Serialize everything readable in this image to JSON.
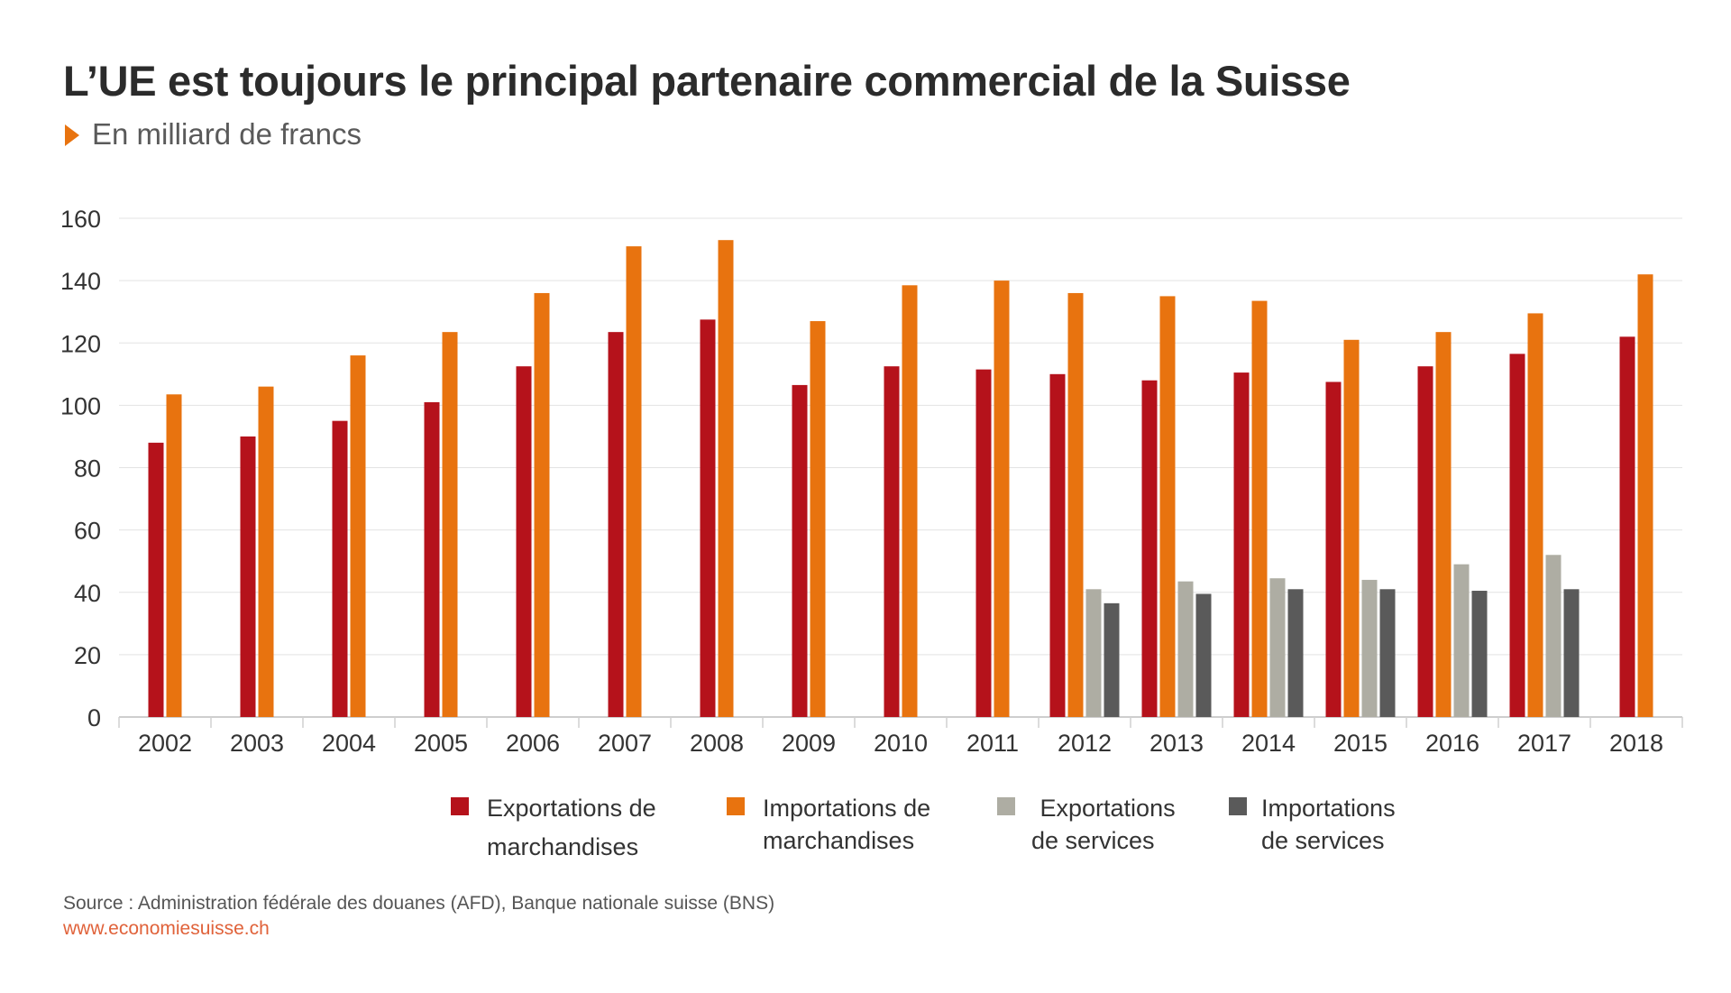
{
  "title": "L’UE est toujours le principal partenaire commercial de la Suisse",
  "subtitle": "En milliard de francs",
  "footer": {
    "source": "Source : Administration fédérale des douanes (AFD), Banque nationale suisse (BNS)",
    "url": "www.economiesuisse.ch"
  },
  "colors": {
    "exportations_marchandises": "#b5121b",
    "importations_marchandises": "#e8730f",
    "exportations_services": "#aeada3",
    "importations_services": "#5a5a5a",
    "grid": "#e3e3e3"
  },
  "legend": [
    {
      "line1": "Exportations de",
      "line2": "marchandises",
      "color": "#b5121b"
    },
    {
      "line1": "Importations de",
      "line2": "marchandises",
      "color": "#e8730f"
    },
    {
      "line1": " Exportations",
      "line2": "de services",
      "color": "#aeada3"
    },
    {
      "line1": "Importations",
      "line2": "de services",
      "color": "#5a5a5a"
    }
  ],
  "chart_data": {
    "type": "bar",
    "categories": [
      "2002",
      "2003",
      "2004",
      "2005",
      "2006",
      "2007",
      "2008",
      "2009",
      "2010",
      "2011",
      "2012",
      "2013",
      "2014",
      "2015",
      "2016",
      "2017",
      "2018"
    ],
    "ylim": [
      0,
      160
    ],
    "yticks": [
      "0",
      "20",
      "40",
      "60",
      "80",
      "100",
      "120",
      "140",
      "160"
    ],
    "grid": true,
    "series": [
      {
        "name": "Exportations de marchandises",
        "color": "#b5121b",
        "values": [
          88,
          90,
          95,
          101,
          112.5,
          123.5,
          127.5,
          106.5,
          112.5,
          111.5,
          110,
          108,
          110.5,
          107.5,
          112.5,
          116.5,
          122
        ]
      },
      {
        "name": "Importations de marchandises",
        "color": "#e8730f",
        "values": [
          103.5,
          106,
          116,
          123.5,
          136,
          151,
          153,
          127,
          138.5,
          140,
          136,
          135,
          133.5,
          121,
          123.5,
          129.5,
          142
        ]
      },
      {
        "name": "Exportations de services",
        "color": "#aeada3",
        "values": [
          null,
          null,
          null,
          null,
          null,
          null,
          null,
          null,
          null,
          null,
          41,
          43.5,
          44.5,
          44,
          49,
          52,
          null
        ]
      },
      {
        "name": "Importations de services",
        "color": "#5a5a5a",
        "values": [
          null,
          null,
          null,
          null,
          null,
          null,
          null,
          null,
          null,
          null,
          36.5,
          39.5,
          41,
          41,
          40.5,
          41,
          null
        ]
      }
    ]
  }
}
